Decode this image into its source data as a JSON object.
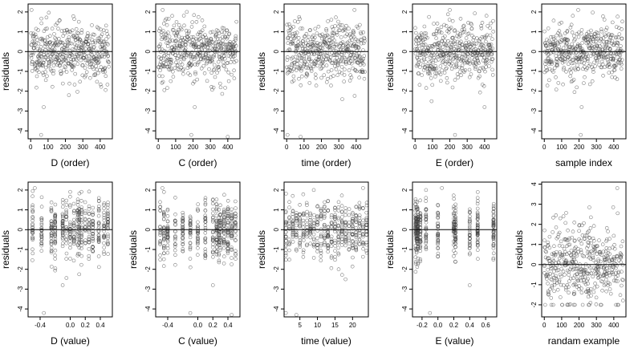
{
  "figure": {
    "y_label": "residuals",
    "marker_color": "#444444",
    "line_color": "#000000",
    "frame_color": "#000000"
  },
  "chart_data": [
    {
      "type": "scatter",
      "xlabel": "D (order)",
      "ylabel": "residuals",
      "xlim": [
        -15,
        470
      ],
      "ylim": [
        -4.4,
        2.4
      ],
      "xticks": [
        0,
        100,
        200,
        300,
        400
      ],
      "yticks": [
        -4,
        -3,
        -2,
        -1,
        0,
        1,
        2
      ],
      "hline": 0,
      "n_points": 450,
      "x_kind": "index",
      "seed": 11,
      "notable_points": [
        {
          "x": 5,
          "y": 2.1
        },
        {
          "x": 60,
          "y": -4.2
        },
        {
          "x": 75,
          "y": -2.8
        },
        {
          "x": 220,
          "y": -2.2
        }
      ]
    },
    {
      "type": "scatter",
      "xlabel": "C (order)",
      "ylabel": "residuals",
      "xlim": [
        -15,
        470
      ],
      "ylim": [
        -4.4,
        2.4
      ],
      "xticks": [
        0,
        100,
        200,
        300,
        400
      ],
      "yticks": [
        -4,
        -3,
        -2,
        -1,
        0,
        1,
        2
      ],
      "hline": 0,
      "n_points": 450,
      "x_kind": "index",
      "seed": 23,
      "notable_points": [
        {
          "x": 25,
          "y": 2.1
        },
        {
          "x": 190,
          "y": -4.2
        },
        {
          "x": 210,
          "y": -2.8
        },
        {
          "x": 400,
          "y": -4.3
        }
      ]
    },
    {
      "type": "scatter",
      "xlabel": "time (order)",
      "ylabel": "residuals",
      "xlim": [
        -15,
        470
      ],
      "ylim": [
        -4.4,
        2.4
      ],
      "xticks": [
        0,
        100,
        200,
        300,
        400
      ],
      "yticks": [
        -4,
        -3,
        -2,
        -1,
        0,
        1,
        2
      ],
      "hline": 0,
      "n_points": 450,
      "x_kind": "index",
      "seed": 37,
      "notable_points": [
        {
          "x": 5,
          "y": -4.2
        },
        {
          "x": 80,
          "y": -4.3
        },
        {
          "x": 390,
          "y": 2.1
        },
        {
          "x": 320,
          "y": -2.4
        }
      ]
    },
    {
      "type": "scatter",
      "xlabel": "E (order)",
      "ylabel": "residuals",
      "xlim": [
        -15,
        470
      ],
      "ylim": [
        -4.4,
        2.4
      ],
      "xticks": [
        0,
        100,
        200,
        300,
        400
      ],
      "yticks": [
        -4,
        -3,
        -2,
        -1,
        0,
        1,
        2
      ],
      "hline": 0,
      "n_points": 450,
      "x_kind": "index",
      "seed": 41,
      "notable_points": [
        {
          "x": 230,
          "y": -4.2
        },
        {
          "x": 200,
          "y": 2.1
        },
        {
          "x": 400,
          "y": -2.8
        },
        {
          "x": 95,
          "y": -2.5
        }
      ]
    },
    {
      "type": "scatter",
      "xlabel": "sample index",
      "ylabel": "residuals",
      "xlim": [
        -15,
        470
      ],
      "ylim": [
        -4.4,
        2.4
      ],
      "xticks": [
        0,
        100,
        200,
        300,
        400
      ],
      "yticks": [
        -4,
        -3,
        -2,
        -1,
        0,
        1,
        2
      ],
      "hline": 0,
      "n_points": 450,
      "x_kind": "index",
      "seed": 53,
      "notable_points": [
        {
          "x": 210,
          "y": -4.2
        },
        {
          "x": 195,
          "y": 2.1
        },
        {
          "x": 215,
          "y": -2.8
        }
      ]
    },
    {
      "type": "scatter",
      "xlabel": "D (value)",
      "ylabel": "residuals",
      "xlim": [
        -0.56,
        0.56
      ],
      "ylim": [
        -4.4,
        2.4
      ],
      "xticks": [
        -0.4,
        0,
        0.2,
        0.4
      ],
      "xticklabels": [
        "-0.4",
        "0.0",
        "0.2",
        "0.4"
      ],
      "yticks": [
        -4,
        -3,
        -2,
        -1,
        0,
        1,
        2
      ],
      "hline": 0,
      "n_points": 450,
      "x_kind": "clusters",
      "seed": 67,
      "clusters": [
        -0.5,
        -0.38,
        -0.25,
        -0.2,
        -0.1,
        -0.05,
        0.0,
        0.05,
        0.1,
        0.12,
        0.15,
        0.2,
        0.25,
        0.3,
        0.38,
        0.45,
        0.5
      ],
      "notable_points": [
        {
          "x": -0.47,
          "y": 2.1
        },
        {
          "x": -0.35,
          "y": -4.2
        },
        {
          "x": -0.1,
          "y": -2.8
        }
      ]
    },
    {
      "type": "scatter",
      "xlabel": "C (value)",
      "ylabel": "residuals",
      "xlim": [
        -0.56,
        0.56
      ],
      "ylim": [
        -4.4,
        2.4
      ],
      "xticks": [
        -0.4,
        0,
        0.2,
        0.4
      ],
      "xticklabels": [
        "-0.4",
        "0.0",
        "0.2",
        "0.4"
      ],
      "yticks": [
        -4,
        -3,
        -2,
        -1,
        0,
        1,
        2
      ],
      "hline": 0,
      "n_points": 450,
      "x_kind": "clusters",
      "seed": 79,
      "clusters": [
        -0.5,
        -0.45,
        -0.4,
        -0.3,
        -0.2,
        -0.1,
        0.0,
        0.1,
        0.2,
        0.25,
        0.28,
        0.3,
        0.35,
        0.4,
        0.45,
        0.5
      ],
      "notable_points": [
        {
          "x": -0.47,
          "y": 2.1
        },
        {
          "x": -0.1,
          "y": -4.2
        },
        {
          "x": 0.45,
          "y": -4.3
        },
        {
          "x": 0.2,
          "y": -2.8
        }
      ]
    },
    {
      "type": "scatter",
      "xlabel": "time (value)",
      "ylabel": "residuals",
      "xlim": [
        0.5,
        24.5
      ],
      "ylim": [
        -4.4,
        2.4
      ],
      "xticks": [
        5,
        10,
        15,
        20
      ],
      "yticks": [
        -4,
        -3,
        -2,
        -1,
        0,
        1,
        2
      ],
      "hline": 0,
      "n_points": 450,
      "x_kind": "clusters",
      "seed": 83,
      "clusters": [
        1,
        2,
        3,
        4,
        5,
        6,
        7,
        8,
        9,
        10,
        11,
        12,
        13,
        14,
        15,
        16,
        17,
        18,
        19,
        20,
        21,
        22,
        23,
        24
      ],
      "notable_points": [
        {
          "x": 1,
          "y": -4.2
        },
        {
          "x": 4,
          "y": -4.3
        },
        {
          "x": 23,
          "y": 2.1
        },
        {
          "x": 18,
          "y": -2.5
        }
      ]
    },
    {
      "type": "scatter",
      "xlabel": "E (value)",
      "ylabel": "residuals",
      "xlim": [
        -0.32,
        0.74
      ],
      "ylim": [
        -4.4,
        2.4
      ],
      "xticks": [
        -0.2,
        0,
        0.2,
        0.4,
        0.6
      ],
      "xticklabels": [
        "-0.2",
        "0.0",
        "0.2",
        "0.4",
        "0.6"
      ],
      "yticks": [
        -4,
        -3,
        -2,
        -1,
        0,
        1,
        2
      ],
      "hline": 0,
      "n_points": 450,
      "x_kind": "clusters",
      "seed": 97,
      "clusters": [
        -0.28,
        -0.27,
        -0.26,
        -0.25,
        -0.22,
        -0.15,
        0.0,
        0.2,
        0.22,
        0.4,
        0.5,
        0.7
      ],
      "notable_points": [
        {
          "x": -0.1,
          "y": -4.2
        },
        {
          "x": 0.05,
          "y": 2.1
        },
        {
          "x": 0.4,
          "y": -2.8
        }
      ]
    },
    {
      "type": "scatter",
      "xlabel": "randam example",
      "ylabel": "residuals",
      "xlim": [
        -15,
        470
      ],
      "ylim": [
        -2.6,
        4.1
      ],
      "xticks": [
        0,
        100,
        200,
        300,
        400
      ],
      "yticks": [
        -2,
        -1,
        0,
        1,
        2,
        3,
        4
      ],
      "hline": 0,
      "n_points": 450,
      "x_kind": "uniform",
      "seed": 101,
      "notable_points": [
        {
          "x": 420,
          "y": 3.8
        },
        {
          "x": 110,
          "y": 2.4
        }
      ]
    }
  ]
}
